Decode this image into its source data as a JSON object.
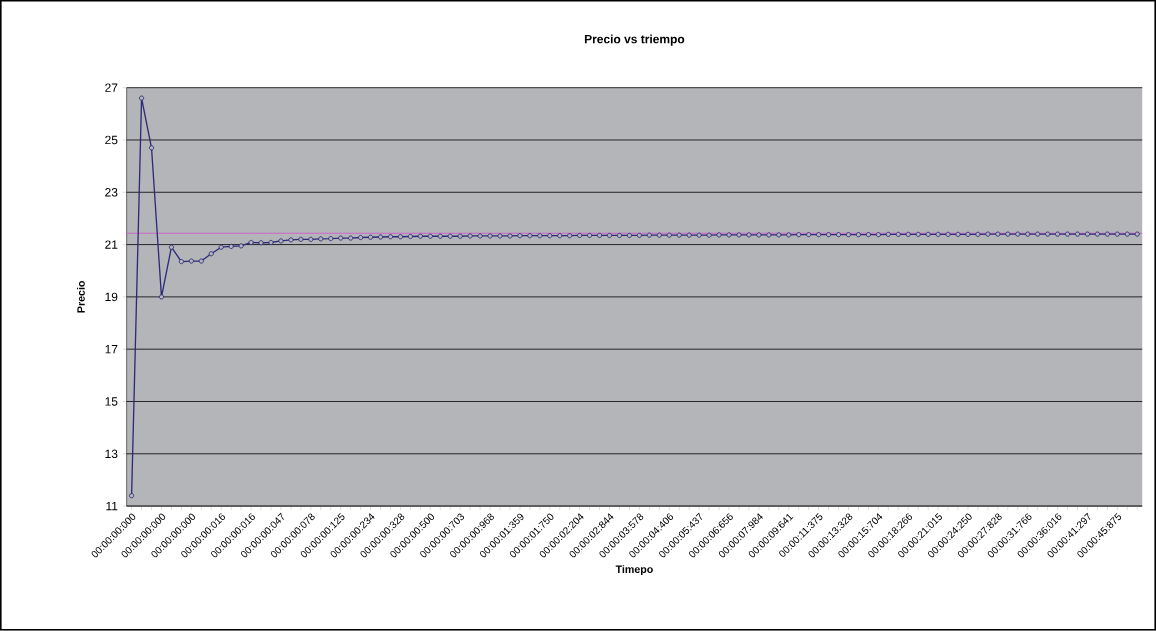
{
  "chart_data": {
    "type": "line",
    "title": "Precio vs triempo",
    "xlabel": "Timepo",
    "ylabel": "Precio",
    "categories": [
      "00:00:00:000",
      null,
      null,
      "00:00:00:000",
      null,
      null,
      "00:00:00:000",
      null,
      null,
      "00:00:00:016",
      null,
      null,
      "00:00:00:016",
      null,
      null,
      "00:00:00:047",
      null,
      null,
      "00:00:00:078",
      null,
      null,
      "00:00:00:125",
      null,
      null,
      "00:00:00:234",
      null,
      null,
      "00:00:00:328",
      null,
      null,
      "00:00:00:500",
      null,
      null,
      "00:00:00:703",
      null,
      null,
      "00:00:00:968",
      null,
      null,
      "00:00:01:359",
      null,
      null,
      "00:00:01:750",
      null,
      null,
      "00:00:02:204",
      null,
      null,
      "00:00:02:844",
      null,
      null,
      "00:00:03:578",
      null,
      null,
      "00:00:04:406",
      null,
      null,
      "00:00:05:437",
      null,
      null,
      "00:00:06:656",
      null,
      null,
      "00:00:07:984",
      null,
      null,
      "00:00:09:641",
      null,
      null,
      "00:00:11:375",
      null,
      null,
      "00:00:13:328",
      null,
      null,
      "00:00:15:704",
      null,
      null,
      "00:00:18:266",
      null,
      null,
      "00:00:21:015",
      null,
      null,
      "00:00:24:250",
      null,
      null,
      "00:00:27:828",
      null,
      null,
      "00:00:31:766",
      null,
      null,
      "00:00:36:016",
      null,
      null,
      "00:00:41:297",
      null,
      null,
      "00:00:45:875",
      null,
      null
    ],
    "series": [
      {
        "color": "#2e2a7a",
        "values": [
          11.4,
          26.6,
          24.7,
          19.0,
          20.9,
          20.35,
          20.37,
          20.37,
          20.65,
          20.9,
          20.93,
          20.95,
          21.08,
          21.07,
          21.08,
          21.14,
          21.18,
          21.2,
          21.2,
          21.22,
          21.23,
          21.25,
          21.25,
          21.27,
          21.28,
          21.29,
          21.3,
          21.3,
          21.31,
          21.32,
          21.32,
          21.32,
          21.32,
          21.32,
          21.33,
          21.33,
          21.33,
          21.33,
          21.33,
          21.34,
          21.34,
          21.34,
          21.34,
          21.34,
          21.34,
          21.35,
          21.35,
          21.35,
          21.35,
          21.35,
          21.35,
          21.35,
          21.36,
          21.36,
          21.36,
          21.36,
          21.36,
          21.36,
          21.36,
          21.37,
          21.37,
          21.37,
          21.37,
          21.37,
          21.37,
          21.37,
          21.37,
          21.38,
          21.38,
          21.38,
          21.38,
          21.38,
          21.38,
          21.38,
          21.38,
          21.38,
          21.39,
          21.39,
          21.39,
          21.39,
          21.39,
          21.39,
          21.39,
          21.39,
          21.39,
          21.39,
          21.4,
          21.4,
          21.4,
          21.4,
          21.4,
          21.4,
          21.4,
          21.4,
          21.4,
          21.4,
          21.4,
          21.4,
          21.4,
          21.4,
          21.4,
          21.4
        ]
      }
    ],
    "ylim": [
      11,
      27
    ],
    "yticks": [
      11,
      13,
      15,
      17,
      19,
      21,
      23,
      25,
      27
    ],
    "ref_lines": [
      {
        "axis": "y",
        "value": 21.43,
        "color": "#cc66cc"
      }
    ],
    "grid": "y",
    "marker": "circle",
    "line_style": "solid"
  }
}
